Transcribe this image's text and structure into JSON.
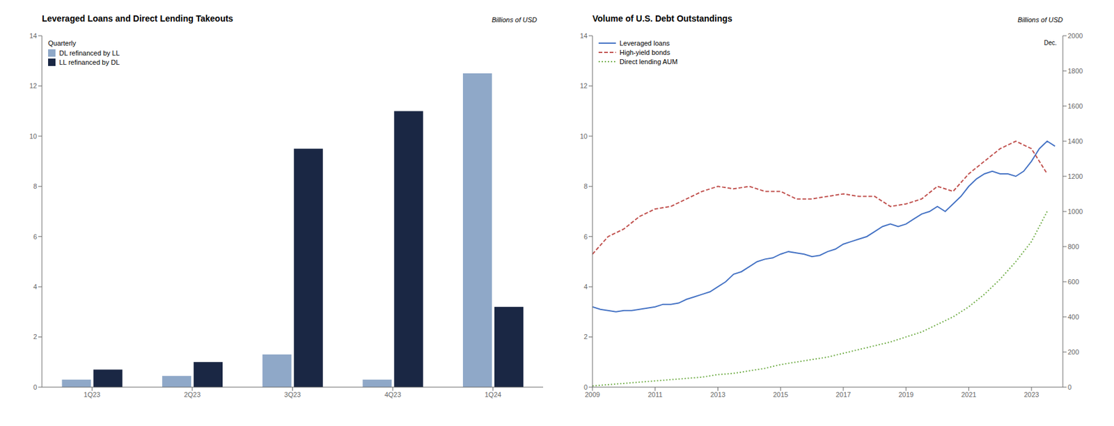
{
  "chart_data": [
    {
      "type": "bar",
      "title": "Leveraged Loans and Direct Lending Takeouts",
      "subtitle": "Billions of USD",
      "legend_title": "Quarterly",
      "categories": [
        "1Q23",
        "2Q23",
        "3Q23",
        "4Q23",
        "1Q24"
      ],
      "series": [
        {
          "name": "DL refinanced by LL",
          "color": "#8fa8c8",
          "values": [
            0.3,
            0.45,
            1.3,
            0.3,
            12.5
          ]
        },
        {
          "name": "LL refinanced by DL",
          "color": "#1a2744",
          "values": [
            0.7,
            1.0,
            9.5,
            11.0,
            3.2
          ]
        }
      ],
      "ylim": [
        0,
        14
      ],
      "yticks": [
        0,
        2,
        4,
        6,
        8,
        10,
        12,
        14
      ],
      "legend": "upper left",
      "grid": false
    },
    {
      "type": "line",
      "title": "Volume of U.S. Debt Outstandings",
      "subtitle": "Billions of USD",
      "annotations": [
        "Dec."
      ],
      "series": [
        {
          "name": "Leveraged loans",
          "color": "#4472c4",
          "line_style": "solid",
          "x": [
            2009,
            2009.25,
            2009.5,
            2009.75,
            2010,
            2010.25,
            2010.5,
            2010.75,
            2011,
            2011.25,
            2011.5,
            2011.75,
            2012,
            2012.25,
            2012.5,
            2012.75,
            2013,
            2013.25,
            2013.5,
            2013.75,
            2014,
            2014.25,
            2014.5,
            2014.75,
            2015,
            2015.25,
            2015.5,
            2015.75,
            2016,
            2016.25,
            2016.5,
            2016.75,
            2017,
            2017.25,
            2017.5,
            2017.75,
            2018,
            2018.25,
            2018.5,
            2018.75,
            2019,
            2019.25,
            2019.5,
            2019.75,
            2020,
            2020.25,
            2020.5,
            2020.75,
            2021,
            2021.25,
            2021.5,
            2021.75,
            2022,
            2022.25,
            2022.5,
            2022.75,
            2023,
            2023.25,
            2023.5,
            2023.75
          ],
          "values": [
            3.2,
            3.1,
            3.05,
            3.0,
            3.05,
            3.05,
            3.1,
            3.15,
            3.2,
            3.3,
            3.3,
            3.35,
            3.5,
            3.6,
            3.7,
            3.8,
            4.0,
            4.2,
            4.5,
            4.6,
            4.8,
            5.0,
            5.1,
            5.15,
            5.3,
            5.4,
            5.35,
            5.3,
            5.2,
            5.25,
            5.4,
            5.5,
            5.7,
            5.8,
            5.9,
            6.0,
            6.2,
            6.4,
            6.5,
            6.4,
            6.5,
            6.7,
            6.9,
            7.0,
            7.2,
            7.0,
            7.3,
            7.6,
            8.0,
            8.3,
            8.5,
            8.6,
            8.5,
            8.5,
            8.4,
            8.6,
            9.0,
            9.5,
            9.8,
            9.6
          ]
        },
        {
          "name": "High-yield bonds",
          "color": "#c0504d",
          "line_style": "dashed",
          "x": [
            2009,
            2009.5,
            2010,
            2010.5,
            2011,
            2011.5,
            2012,
            2012.5,
            2013,
            2013.5,
            2014,
            2014.5,
            2015,
            2015.5,
            2016,
            2016.5,
            2017,
            2017.5,
            2018,
            2018.5,
            2019,
            2019.5,
            2020,
            2020.5,
            2021,
            2021.5,
            2022,
            2022.5,
            2023,
            2023.5
          ],
          "values": [
            5.3,
            6.0,
            6.3,
            6.8,
            7.1,
            7.2,
            7.5,
            7.8,
            8.0,
            7.9,
            8.0,
            7.8,
            7.8,
            7.5,
            7.5,
            7.6,
            7.7,
            7.6,
            7.6,
            7.2,
            7.3,
            7.5,
            8.0,
            7.8,
            8.5,
            9.0,
            9.5,
            9.8,
            9.5,
            8.5
          ]
        },
        {
          "name": "Direct lending AUM",
          "color": "#70ad47",
          "line_style": "dotted",
          "x": [
            2009,
            2009.5,
            2010,
            2010.5,
            2011,
            2011.5,
            2012,
            2012.5,
            2013,
            2013.5,
            2014,
            2014.5,
            2015,
            2015.5,
            2016,
            2016.5,
            2017,
            2017.5,
            2018,
            2018.5,
            2019,
            2019.5,
            2020,
            2020.5,
            2021,
            2021.5,
            2022,
            2022.5,
            2023,
            2023.5
          ],
          "values": [
            0.05,
            0.1,
            0.15,
            0.2,
            0.25,
            0.3,
            0.35,
            0.4,
            0.5,
            0.55,
            0.65,
            0.75,
            0.9,
            1.0,
            1.1,
            1.2,
            1.35,
            1.5,
            1.65,
            1.8,
            2.0,
            2.2,
            2.5,
            2.8,
            3.2,
            3.7,
            4.3,
            5.0,
            5.8,
            7.0
          ]
        }
      ],
      "xlim": [
        2009,
        2024
      ],
      "xticks": [
        2009,
        2011,
        2013,
        2015,
        2017,
        2019,
        2021,
        2023
      ],
      "ylim": [
        0,
        14
      ],
      "yticks": [
        0,
        2,
        4,
        6,
        8,
        10,
        12,
        14
      ],
      "y2lim": [
        0,
        2000
      ],
      "y2ticks": [
        0,
        200,
        400,
        600,
        800,
        1000,
        1200,
        1400,
        1600,
        1800,
        2000
      ],
      "legend": "upper left",
      "grid": false
    }
  ]
}
